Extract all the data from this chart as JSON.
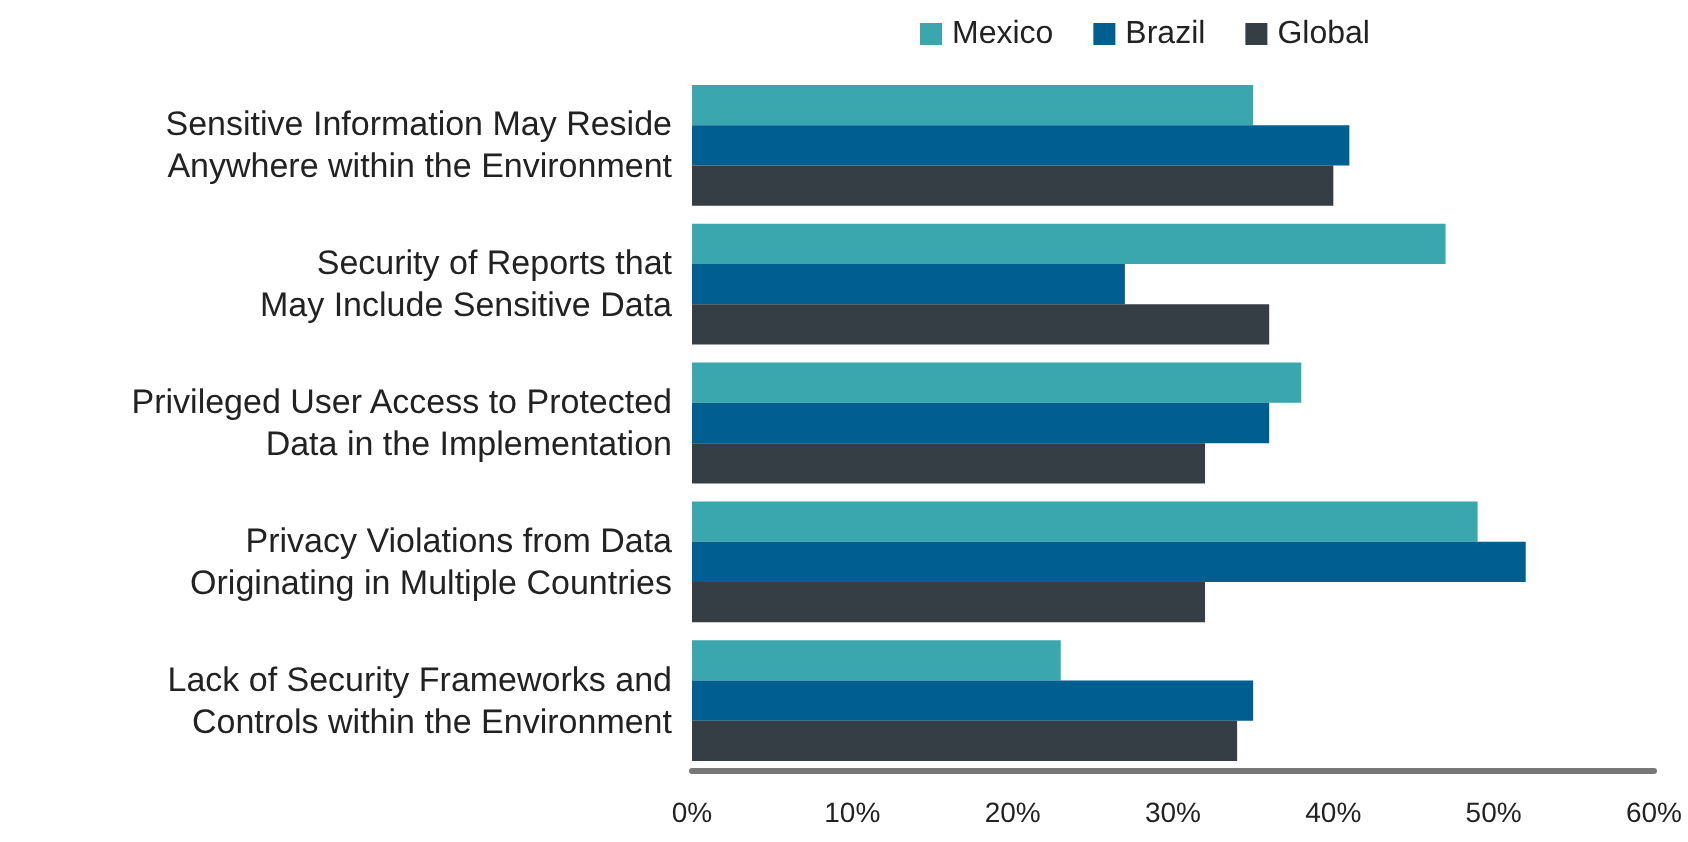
{
  "chart_data": {
    "type": "bar",
    "orientation": "horizontal",
    "categories": [
      "Sensitive Information May Reside\nAnywhere within the Environment",
      "Security of Reports that\nMay Include Sensitive Data",
      "Privileged User Access to Protected\nData in the Implementation",
      "Privacy Violations from Data\nOriginating in Multiple Countries",
      "Lack of Security Frameworks and\nControls within the Environment"
    ],
    "series": [
      {
        "name": "Mexico",
        "color": "#3aa6ad",
        "values": [
          35,
          47,
          38,
          49,
          23
        ]
      },
      {
        "name": "Brazil",
        "color": "#015e91",
        "values": [
          41,
          27,
          36,
          52,
          35
        ]
      },
      {
        "name": "Global",
        "color": "#363e45",
        "values": [
          40,
          36,
          32,
          32,
          34
        ]
      }
    ],
    "xlim": [
      0,
      60
    ],
    "xticks": [
      {
        "value": 0,
        "label": "0%"
      },
      {
        "value": 10,
        "label": "10%"
      },
      {
        "value": 20,
        "label": "20%"
      },
      {
        "value": 30,
        "label": "30%"
      },
      {
        "value": 40,
        "label": "40%"
      },
      {
        "value": 50,
        "label": "50%"
      },
      {
        "value": 60,
        "label": "60%"
      }
    ],
    "grid": false,
    "legend": "top"
  }
}
